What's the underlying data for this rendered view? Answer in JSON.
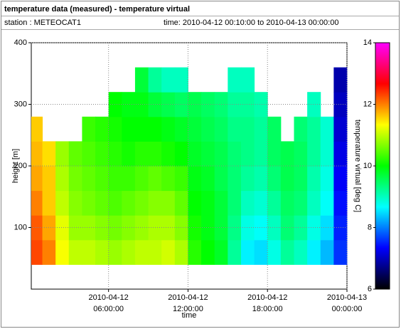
{
  "header": {
    "title": "temperature data (measured) - temperature virtual",
    "station": "station : METEOCAT1",
    "time": "time: 2010-04-12 00:10:00 to 2010-04-13 00:00:00"
  },
  "chart_data": {
    "type": "heatmap",
    "xlabel": "time",
    "ylabel": "height [m]",
    "zlabel": "temperature virtual [deg C]",
    "xlim": [
      "2010-04-12 00:10:00",
      "2010-04-13 00:00:00"
    ],
    "xticks": [
      "2010-04-12 06:00:00",
      "2010-04-12 12:00:00",
      "2010-04-12 18:00:00",
      "2010-04-13 00:00:00"
    ],
    "ylim": [
      0,
      400
    ],
    "yticks": [
      100,
      200,
      300,
      400
    ],
    "zlim": [
      6,
      14
    ],
    "zticks": [
      6,
      8,
      10,
      12,
      14
    ],
    "colorscale": [
      "#000000",
      "#0000ff",
      "#00ffff",
      "#00ff00",
      "#ffff00",
      "#ff0000",
      "#ff00ff"
    ],
    "grid": true,
    "x_bins": [
      "2010-04-12 00:10:00",
      "2010-04-12 01:00:00",
      "2010-04-12 02:00:00",
      "2010-04-12 03:00:00",
      "2010-04-12 04:00:00",
      "2010-04-12 05:00:00",
      "2010-04-12 06:00:00",
      "2010-04-12 07:00:00",
      "2010-04-12 08:00:00",
      "2010-04-12 09:00:00",
      "2010-04-12 10:00:00",
      "2010-04-12 11:00:00",
      "2010-04-12 12:00:00",
      "2010-04-12 13:00:00",
      "2010-04-12 14:00:00",
      "2010-04-12 15:00:00",
      "2010-04-12 16:00:00",
      "2010-04-12 17:00:00",
      "2010-04-12 18:00:00",
      "2010-04-12 19:00:00",
      "2010-04-12 20:00:00",
      "2010-04-12 21:00:00",
      "2010-04-12 22:00:00",
      "2010-04-12 23:00:00",
      "2010-04-13 00:00:00"
    ],
    "y_bins": [
      40,
      80,
      120,
      160,
      200,
      240,
      280,
      320,
      360
    ],
    "values": [
      [
        12.3,
        12.2,
        12.0,
        11.8,
        11.7,
        11.6,
        null,
        null
      ],
      [
        12.0,
        11.8,
        11.6,
        11.6,
        11.5,
        null,
        null,
        null
      ],
      [
        11.3,
        11.2,
        11.0,
        10.9,
        10.8,
        null,
        null,
        null
      ],
      [
        11.0,
        10.8,
        10.7,
        10.6,
        10.5,
        null,
        null,
        null
      ],
      [
        11.0,
        10.8,
        10.6,
        10.5,
        10.4,
        10.3,
        null,
        null
      ],
      [
        10.9,
        10.7,
        10.5,
        10.4,
        10.3,
        10.2,
        null,
        null
      ],
      [
        10.8,
        10.6,
        10.4,
        10.3,
        10.2,
        10.1,
        10.0,
        null
      ],
      [
        10.9,
        10.7,
        10.5,
        10.3,
        10.1,
        10.0,
        9.9,
        null
      ],
      [
        11.0,
        10.8,
        10.6,
        10.4,
        10.2,
        10.0,
        9.9,
        9.7
      ],
      [
        11.0,
        10.9,
        10.7,
        10.5,
        10.2,
        10.0,
        9.7,
        9.2
      ],
      [
        11.1,
        10.9,
        10.7,
        10.4,
        10.1,
        9.9,
        9.6,
        9.0
      ],
      [
        10.9,
        10.7,
        10.5,
        10.3,
        10.0,
        9.8,
        9.5,
        9.0
      ],
      [
        10.2,
        10.1,
        10.0,
        9.9,
        9.8,
        9.7,
        9.6,
        null
      ],
      [
        10.0,
        9.9,
        9.9,
        9.8,
        9.7,
        9.6,
        9.5,
        null
      ],
      [
        9.8,
        9.7,
        9.7,
        9.6,
        9.6,
        9.5,
        9.4,
        null
      ],
      [
        9.2,
        9.3,
        9.4,
        9.4,
        9.4,
        9.3,
        9.2,
        9.0
      ],
      [
        8.6,
        8.8,
        9.0,
        9.2,
        9.3,
        9.3,
        9.2,
        9.0
      ],
      [
        8.5,
        8.7,
        8.9,
        9.1,
        9.2,
        9.2,
        9.1,
        null
      ],
      [
        8.8,
        9.0,
        9.2,
        9.4,
        9.5,
        9.5,
        null,
        null
      ],
      [
        9.2,
        9.4,
        9.5,
        9.6,
        9.6,
        null,
        null,
        null
      ],
      [
        9.0,
        9.2,
        9.4,
        9.5,
        9.5,
        9.4,
        null,
        null
      ],
      [
        8.6,
        8.8,
        9.0,
        9.1,
        9.2,
        9.2,
        9.0,
        null
      ],
      [
        8.3,
        8.5,
        8.7,
        8.8,
        8.9,
        8.9,
        null,
        null
      ],
      [
        7.6,
        7.5,
        7.4,
        7.3,
        7.2,
        7.1,
        7.0,
        6.9
      ]
    ]
  }
}
